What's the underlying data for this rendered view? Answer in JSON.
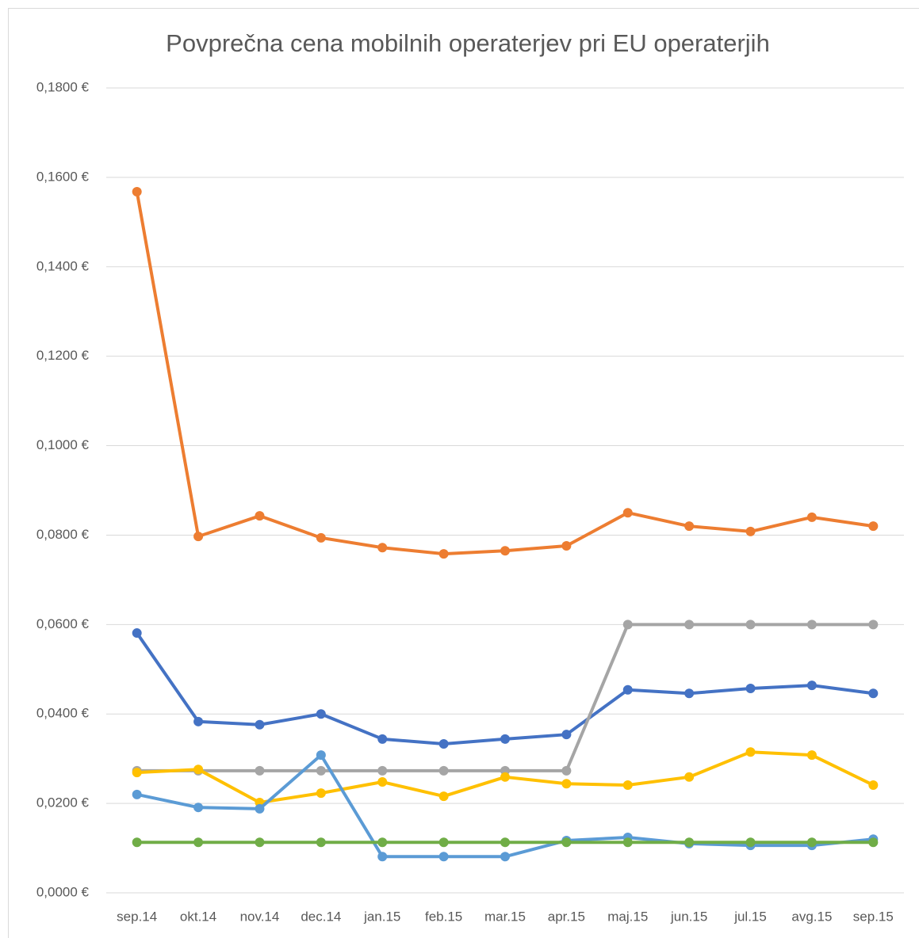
{
  "chart_data": {
    "type": "line",
    "title": "Povprečna cena mobilnih operaterjev pri EU operaterjih",
    "categories": [
      "sep.14",
      "okt.14",
      "nov.14",
      "dec.14",
      "jan.15",
      "feb.15",
      "mar.15",
      "apr.15",
      "maj.15",
      "jun.15",
      "jul.15",
      "avg.15",
      "sep.15"
    ],
    "series": [
      {
        "color": "#ed7d31",
        "values": [
          0.1568,
          0.0797,
          0.0843,
          0.0794,
          0.0772,
          0.0758,
          0.0765,
          0.0776,
          0.085,
          0.082,
          0.0808,
          0.084,
          0.082
        ]
      },
      {
        "color": "#4472c4",
        "values": [
          0.0581,
          0.0383,
          0.0376,
          0.04,
          0.0344,
          0.0333,
          0.0344,
          0.0354,
          0.0454,
          0.0446,
          0.0457,
          0.0464,
          0.0446
        ]
      },
      {
        "color": "#a5a5a5",
        "values": [
          0.0273,
          0.0273,
          0.0273,
          0.0273,
          0.0273,
          0.0273,
          0.0273,
          0.0273,
          0.06,
          0.06,
          0.06,
          0.06,
          0.06
        ]
      },
      {
        "color": "#ffc000",
        "values": [
          0.0269,
          0.0276,
          0.0202,
          0.0223,
          0.0248,
          0.0216,
          0.0259,
          0.0244,
          0.0241,
          0.0259,
          0.0315,
          0.0308,
          0.0241
        ]
      },
      {
        "color": "#5b9bd5",
        "values": [
          0.022,
          0.0191,
          0.0188,
          0.0308,
          0.0081,
          0.0081,
          0.0081,
          0.0117,
          0.0124,
          0.011,
          0.0106,
          0.0106,
          0.012
        ]
      },
      {
        "color": "#70ad47",
        "values": [
          0.0113,
          0.0113,
          0.0113,
          0.0113,
          0.0113,
          0.0113,
          0.0113,
          0.0113,
          0.0113,
          0.0113,
          0.0113,
          0.0113,
          0.0113
        ]
      }
    ],
    "ylim": [
      0,
      0.18
    ],
    "yticks": [
      {
        "value": 0,
        "label": "0,0000 €"
      },
      {
        "value": 0.02,
        "label": "0,0200 €"
      },
      {
        "value": 0.04,
        "label": "0,0400 €"
      },
      {
        "value": 0.06,
        "label": "0,0600 €"
      },
      {
        "value": 0.08,
        "label": "0,0800 €"
      },
      {
        "value": 0.1,
        "label": "0,1000 €"
      },
      {
        "value": 0.12,
        "label": "0,1200 €"
      },
      {
        "value": 0.14,
        "label": "0,1400 €"
      },
      {
        "value": 0.16,
        "label": "0,1600 €"
      },
      {
        "value": 0.18,
        "label": "0,1800 €"
      }
    ],
    "grid": true
  }
}
